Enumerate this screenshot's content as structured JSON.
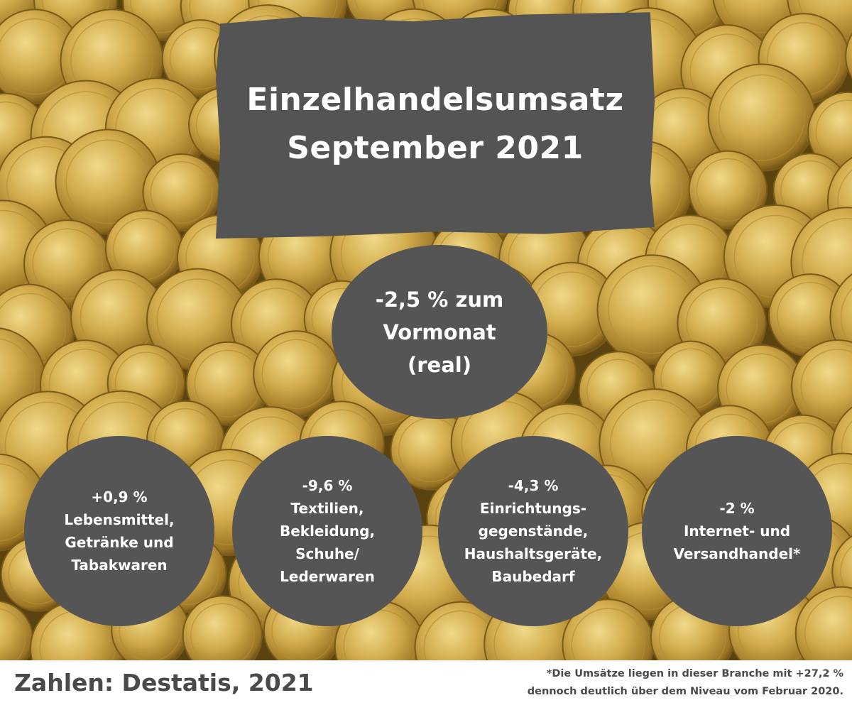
{
  "title": {
    "line1": "Einzelhandelsumsatz",
    "line2": "September 2021"
  },
  "headline": {
    "line1": "-2,5 % zum",
    "line2": "Vormonat",
    "line3": "(real)"
  },
  "categories": [
    {
      "lines": [
        "+0,9 %",
        "Lebensmittel,",
        "Getränke und",
        "Tabakwaren"
      ]
    },
    {
      "lines": [
        "-9,6 %",
        "Textilien,",
        "Bekleidung,",
        "Schuhe/",
        "Lederwaren"
      ]
    },
    {
      "lines": [
        "-4,3 %",
        "Einrichtungs-",
        "gegenstände,",
        "Haushaltsgeräte,",
        "Baubedarf"
      ]
    },
    {
      "lines": [
        "-2 %",
        "Internet- und",
        "Versandhandel*"
      ]
    }
  ],
  "footer": {
    "source": "Zahlen: Destatis, 2021",
    "note_line1": "*Die Umsätze liegen in dieser Branche mit +27,2 %",
    "note_line2": "dennoch deutlich über dem Niveau vom Februar 2020."
  },
  "colors": {
    "panel": "#555555",
    "text_on_panel": "#ffffff",
    "footer_text": "#4a4a4a",
    "coin_gold": "#c9a441"
  },
  "background": "gold-euro-coins-photo"
}
